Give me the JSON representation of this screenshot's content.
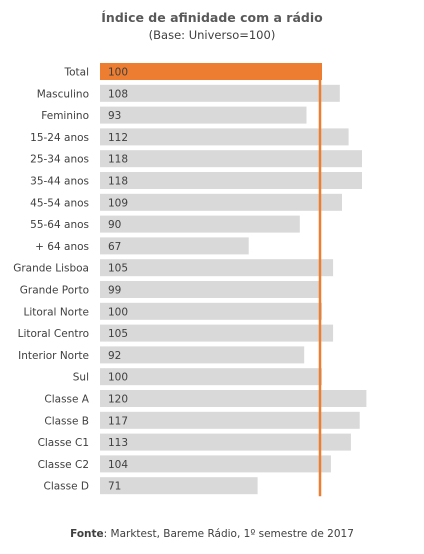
{
  "title": "Índice de afinidade com a rádio",
  "subtitle": "(Base: Universo=100)",
  "footer": {
    "label": "Fonte",
    "text": ": Marktest, Bareme Rádio, 1º semestre de 2017"
  },
  "colors": {
    "bar": "#d9d9d9",
    "highlight": "#ed7d31",
    "reference_line": "#ed7d31",
    "text": "#404040"
  },
  "chart_data": {
    "type": "bar",
    "orientation": "horizontal",
    "title": "Índice de afinidade com a rádio",
    "subtitle": "(Base: Universo=100)",
    "categories": [
      "Total",
      "Masculino",
      "Feminino",
      "15-24 anos",
      "25-34 anos",
      "35-44 anos",
      "45-54 anos",
      "55-64 anos",
      "+ 64  anos",
      "Grande Lisboa",
      "Grande Porto",
      "Litoral Norte",
      "Litoral Centro",
      "Interior Norte",
      "Sul",
      "Classe A",
      "Classe B",
      "Classe C1",
      "Classe C2",
      "Classe D"
    ],
    "values": [
      100,
      108,
      93,
      112,
      118,
      118,
      109,
      90,
      67,
      105,
      99,
      100,
      105,
      92,
      100,
      120,
      117,
      113,
      104,
      71
    ],
    "highlight_category": "Total",
    "reference_value": 100,
    "xlim": [
      0,
      120
    ],
    "grid": false,
    "legend": "none",
    "data_labels": "inside-left"
  }
}
